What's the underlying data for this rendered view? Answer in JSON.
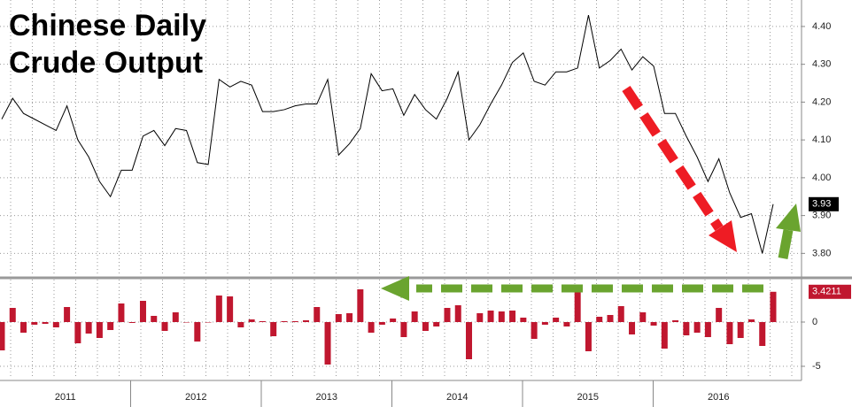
{
  "chart_data": [
    {
      "type": "line",
      "title": "Chinese Daily Crude Output",
      "color": "#000000",
      "grid": true,
      "values": [
        4.155,
        4.21,
        4.17,
        4.155,
        4.14,
        4.125,
        4.19,
        4.1,
        4.055,
        3.99,
        3.95,
        4.02,
        4.02,
        4.11,
        4.125,
        4.085,
        4.13,
        4.125,
        4.04,
        4.035,
        4.26,
        4.24,
        4.255,
        4.245,
        4.175,
        4.175,
        4.18,
        4.19,
        4.195,
        4.195,
        4.26,
        4.06,
        4.09,
        4.13,
        4.275,
        4.23,
        4.235,
        4.165,
        4.22,
        4.18,
        4.155,
        4.21,
        4.28,
        4.1,
        4.14,
        4.195,
        4.245,
        4.305,
        4.33,
        4.255,
        4.245,
        4.28,
        4.28,
        4.29,
        4.43,
        4.29,
        4.31,
        4.34,
        4.285,
        4.32,
        4.295,
        4.17,
        4.17,
        4.11,
        4.055,
        3.99,
        4.05,
        3.96,
        3.895,
        3.905,
        3.8,
        3.93
      ],
      "ylim": [
        3.74,
        4.47
      ],
      "yticks": [
        {
          "value": 3.8,
          "label": "3.80"
        },
        {
          "value": 3.9,
          "label": "3.90"
        },
        {
          "value": 4.0,
          "label": "4.00"
        },
        {
          "value": 4.1,
          "label": "4.10"
        },
        {
          "value": 4.2,
          "label": "4.20"
        },
        {
          "value": 4.3,
          "label": "4.30"
        },
        {
          "value": 4.4,
          "label": "4.40"
        }
      ]
    },
    {
      "type": "bar",
      "color": "#c0172f",
      "grid": true,
      "values": [
        -3.2,
        1.6,
        -1.2,
        -0.3,
        -0.2,
        -0.6,
        1.7,
        -2.4,
        -1.3,
        -1.8,
        -0.9,
        2.1,
        -0.1,
        2.4,
        0.7,
        -1.0,
        1.1,
        0,
        -2.2,
        0,
        3.0,
        2.9,
        -0.6,
        0.3,
        0.1,
        -1.6,
        0.1,
        0.1,
        0.2,
        1.7,
        -4.8,
        0.9,
        1.0,
        3.7,
        -1.2,
        -0.3,
        0.4,
        -1.7,
        1.2,
        -1.0,
        -0.5,
        1.6,
        1.9,
        -4.2,
        1.0,
        1.3,
        1.2,
        1.3,
        0.5,
        -1.9,
        -0.3,
        0.5,
        -0.5,
        3.6,
        -3.3,
        0.6,
        0.8,
        1.8,
        -1.4,
        1.1,
        -0.4,
        -3.0,
        0.2,
        -1.5,
        -1.2,
        -1.7,
        1.6,
        -2.5,
        -1.8,
        0.3,
        -2.7,
        3.4211
      ],
      "ylim": [
        -6.4,
        4.8
      ],
      "yticks": [
        -5,
        0
      ],
      "x_labels": [
        "2011",
        "2012",
        "2013",
        "2014",
        "2015",
        "2016"
      ]
    }
  ]
}
